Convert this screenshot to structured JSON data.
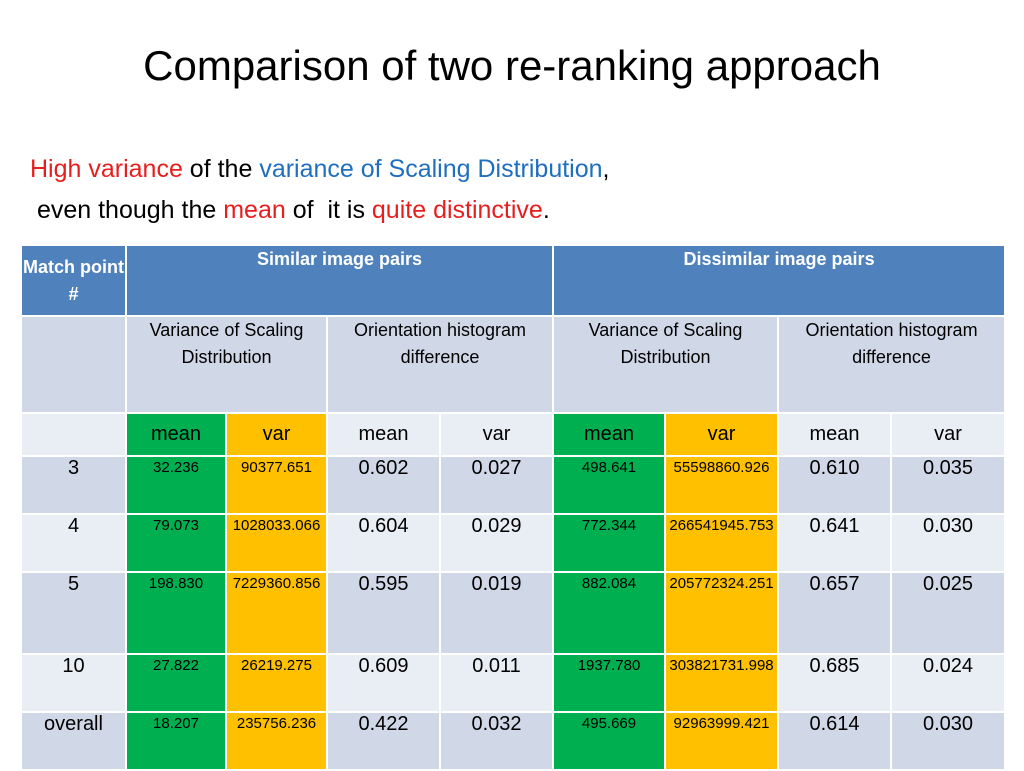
{
  "title": "Comparison of two re-ranking approach",
  "subtitle": {
    "line1": [
      "High variance",
      " of the ",
      "variance of Scaling Distribution",
      ","
    ],
    "line2": [
      " even though the ",
      "mean",
      " of  it is ",
      "quite distinctive",
      "."
    ]
  },
  "colors": {
    "header_bg": "#4f81bd",
    "mean_green": "#00b050",
    "var_yellow": "#ffc000",
    "highlight_red": "#e81e1e",
    "highlight_blue": "#1f6fbf"
  },
  "table": {
    "match_header": "Match point #",
    "similar_header": "Similar image pairs",
    "dissimilar_header": "Dissimilar image pairs",
    "variance_header": "Variance of Scaling Distribution",
    "orientation_header": "Orientation histogram difference",
    "mean_label": "mean",
    "var_label": "var",
    "rows": [
      {
        "match": "3",
        "sim_vs_mean": "32.236",
        "sim_vs_var": "90377.651",
        "sim_oh_mean": "0.602",
        "sim_oh_var": "0.027",
        "dis_vs_mean": "498.641",
        "dis_vs_var": "55598860.926",
        "dis_oh_mean": "0.610",
        "dis_oh_var": "0.035"
      },
      {
        "match": "4",
        "sim_vs_mean": "79.073",
        "sim_vs_var": "1028033.066",
        "sim_oh_mean": "0.604",
        "sim_oh_var": "0.029",
        "dis_vs_mean": "772.344",
        "dis_vs_var": "266541945.753",
        "dis_oh_mean": "0.641",
        "dis_oh_var": "0.030"
      },
      {
        "match": "5",
        "sim_vs_mean": "198.830",
        "sim_vs_var": "7229360.856",
        "sim_oh_mean": "0.595",
        "sim_oh_var": "0.019",
        "dis_vs_mean": "882.084",
        "dis_vs_var": "205772324.251",
        "dis_oh_mean": "0.657",
        "dis_oh_var": "0.025"
      },
      {
        "match": "10",
        "sim_vs_mean": "27.822",
        "sim_vs_var": "26219.275",
        "sim_oh_mean": "0.609",
        "sim_oh_var": "0.011",
        "dis_vs_mean": "1937.780",
        "dis_vs_var": "303821731.998",
        "dis_oh_mean": "0.685",
        "dis_oh_var": "0.024"
      },
      {
        "match": "overall",
        "sim_vs_mean": "18.207",
        "sim_vs_var": "235756.236",
        "sim_oh_mean": "0.422",
        "sim_oh_var": "0.032",
        "dis_vs_mean": "495.669",
        "dis_vs_var": "92963999.421",
        "dis_oh_mean": "0.614",
        "dis_oh_var": "0.030"
      }
    ]
  }
}
